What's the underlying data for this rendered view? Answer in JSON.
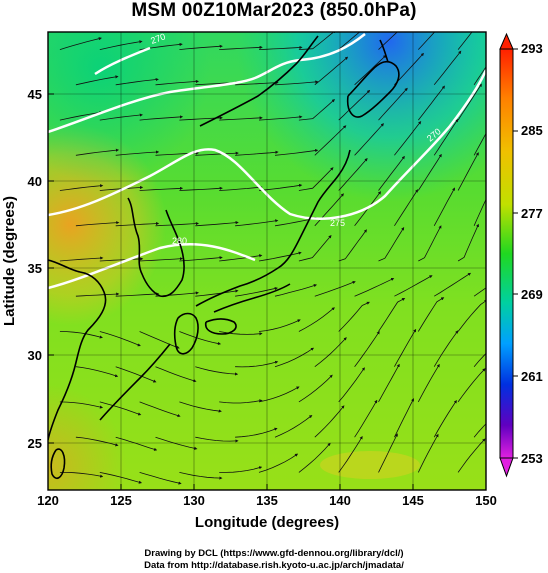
{
  "title": "MSM 00Z10Mar2023 (850.0hPa)",
  "axes": {
    "x_label": "Longitude (degrees)",
    "y_label": "Latitude  (degrees)",
    "x_range": [
      120,
      150
    ],
    "y_range": [
      22.4,
      47.6
    ],
    "x_ticks": [
      "120",
      "125",
      "130",
      "135",
      "140",
      "145",
      "150"
    ],
    "y_ticks": [
      "25",
      "30",
      "35",
      "40",
      "45"
    ]
  },
  "colorbar": {
    "ticks": [
      "293",
      "285",
      "277",
      "269",
      "261",
      "253"
    ],
    "range": [
      253,
      293
    ]
  },
  "colors": {
    "background": "#ffffff",
    "contour": "#ffffff",
    "coastline": "#000000",
    "streamline": "#111111"
  },
  "credits": {
    "line1": "Drawing by DCL (https://www.gfd-dennou.org/library/dcl/)",
    "line2": "Data from http://database.rish.kyoto-u.ac.jp/arch/jmadata/"
  },
  "contour_labels": [
    "270",
    "270",
    "275",
    "280"
  ]
}
